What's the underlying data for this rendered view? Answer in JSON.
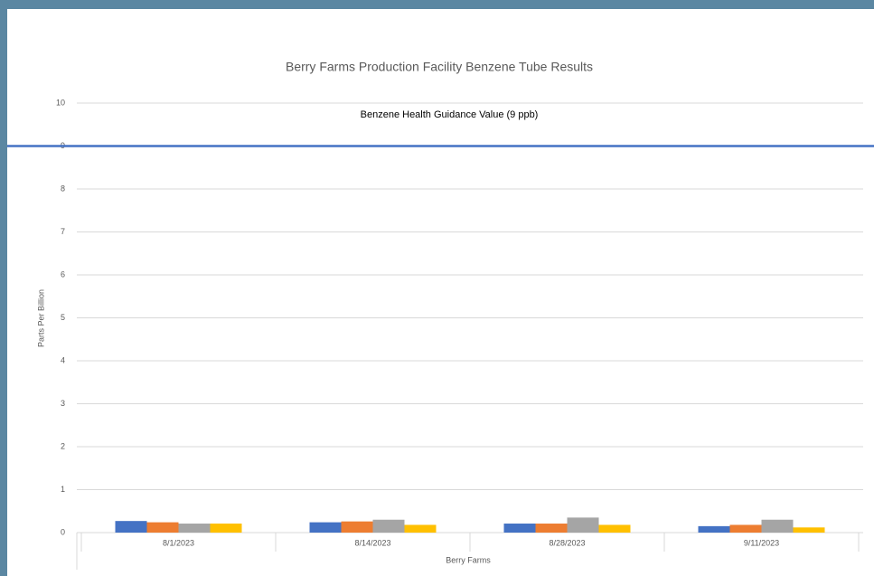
{
  "chart_data": {
    "type": "bar",
    "title": "Berry Farms Production Facility Benzene Tube Results",
    "x_label": "Berry Farms",
    "y_label": "Parts Per Billion",
    "categories": [
      "8/1/2023",
      "8/14/2023",
      "8/28/2023",
      "9/11/2023"
    ],
    "series": [
      {
        "color": "#4472c4",
        "values": [
          0.27,
          0.24,
          0.21,
          0.15
        ]
      },
      {
        "color": "#ed7d31",
        "values": [
          0.24,
          0.26,
          0.21,
          0.18
        ]
      },
      {
        "color": "#a5a5a5",
        "values": [
          0.21,
          0.3,
          0.35,
          0.3
        ]
      },
      {
        "color": "#ffc000",
        "values": [
          0.21,
          0.18,
          0.18,
          0.12
        ]
      }
    ],
    "reference_line": {
      "value": 9,
      "label": "Benzene Health Guidance Value (9 ppb)",
      "color": "#4472c4"
    },
    "ylim": [
      0,
      10
    ],
    "yticks": [
      0,
      1,
      2,
      3,
      4,
      5,
      6,
      7,
      8,
      9,
      10
    ],
    "grid": true
  }
}
